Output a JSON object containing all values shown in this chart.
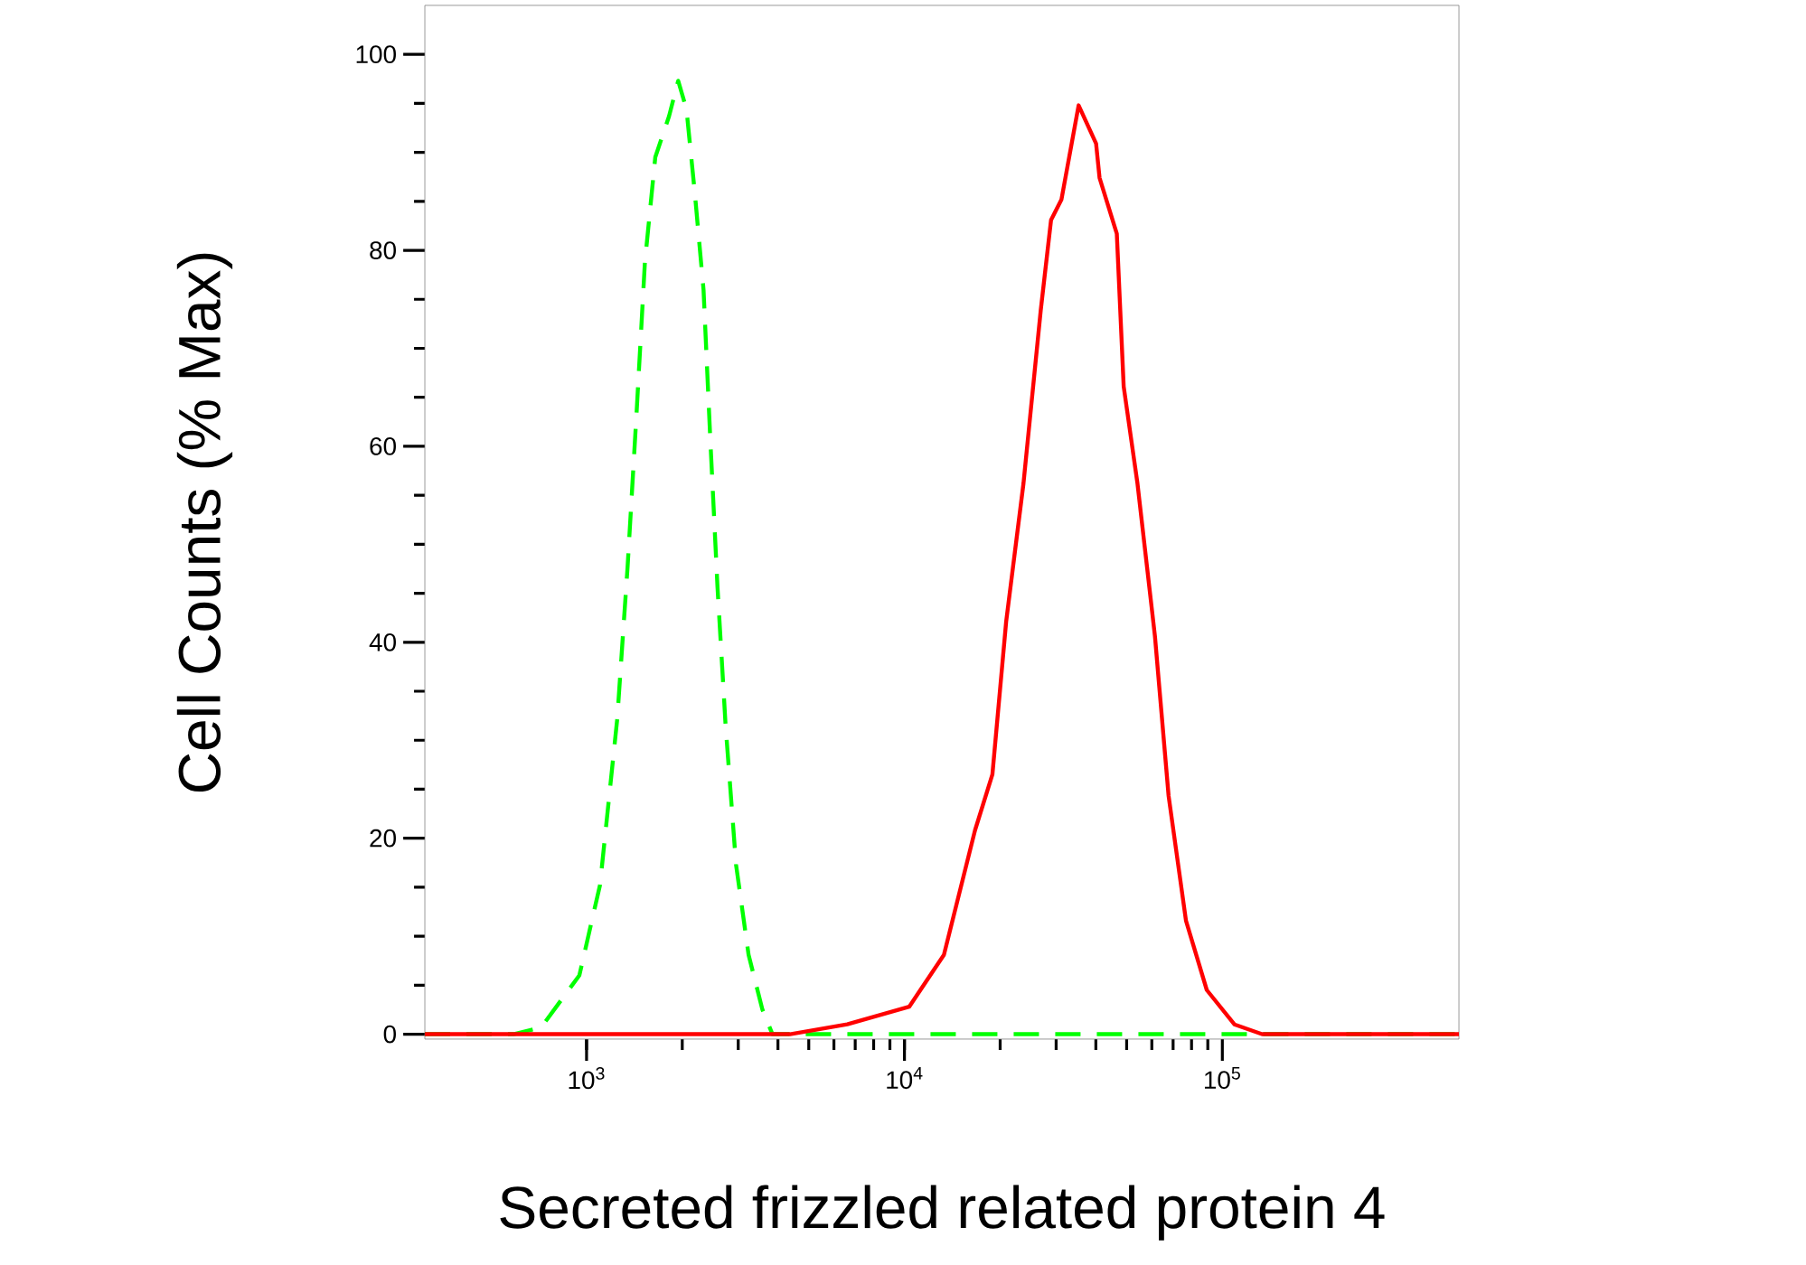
{
  "chart_data": {
    "type": "line",
    "xlabel": "Secreted frizzled related protein 4",
    "ylabel": "Cell Counts (% Max)",
    "log": "x",
    "xlim": [
      310,
      555000
    ],
    "ylim": [
      -0.5,
      105
    ],
    "xticks": [
      {
        "value": 1000,
        "label": "10$^{3}$"
      },
      {
        "value": 10000,
        "label": "10$^{4}$"
      },
      {
        "value": 100000,
        "label": "10$^{5}$"
      }
    ],
    "yticks": [
      0,
      20,
      40,
      60,
      80,
      100
    ],
    "series": [
      {
        "color": "#00ff00",
        "line_style": "dashed",
        "x": [
          310,
          589,
          720,
          949,
          1102,
          1249,
          1346,
          1436,
          1526,
          1645,
          1818,
          1942,
          2062,
          2190,
          2333,
          2453,
          2582,
          2738,
          2953,
          3234,
          3575,
          3845,
          555000
        ],
        "values": [
          0,
          0,
          0.7,
          6,
          15.2,
          32.2,
          47.7,
          63.3,
          78.8,
          89.5,
          93.7,
          97.3,
          94.4,
          85.9,
          76,
          60.4,
          45.6,
          31.5,
          17.3,
          8.1,
          2.5,
          0,
          0
        ]
      },
      {
        "color": "#ff0000",
        "line_style": "solid",
        "x": [
          310,
          4365,
          6607,
          10350,
          13310,
          16670,
          18910,
          20890,
          23680,
          26840,
          28920,
          31190,
          35310,
          40070,
          41090,
          46560,
          48940,
          54080,
          61380,
          67770,
          76840,
          89360,
          109100,
          133300,
          555000
        ],
        "values": [
          0,
          0,
          1,
          2.8,
          8.1,
          20.8,
          26.5,
          42.1,
          56.2,
          73.9,
          83.1,
          85.2,
          94.8,
          90.9,
          87.4,
          81.7,
          66.1,
          56.2,
          40.6,
          24.3,
          11.6,
          4.5,
          1,
          0,
          0
        ]
      }
    ]
  }
}
